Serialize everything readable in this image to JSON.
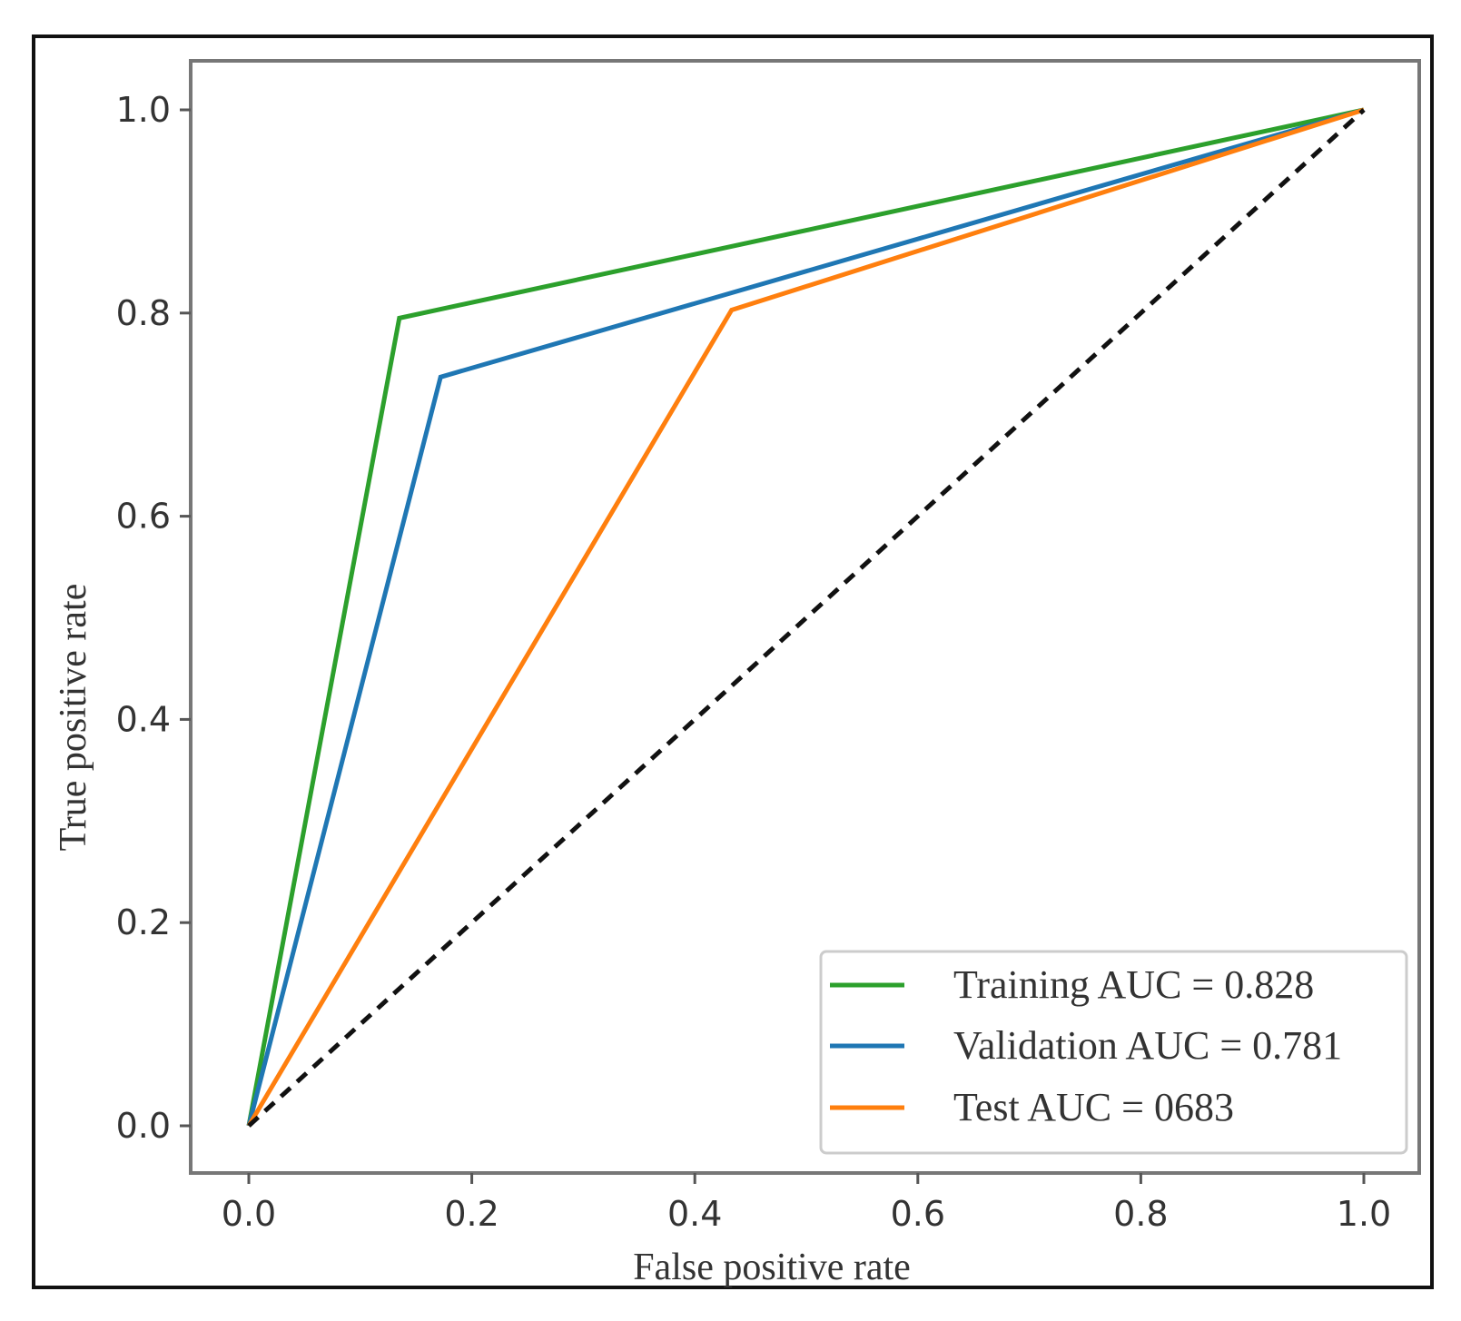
{
  "chart_data": {
    "type": "line",
    "title": "",
    "xlabel": "False positive rate",
    "ylabel": "True positive rate",
    "xlim": [
      0.0,
      1.0
    ],
    "ylim": [
      0.0,
      1.0
    ],
    "xticks": [
      "0.0",
      "0.2",
      "0.4",
      "0.6",
      "0.8",
      "1.0"
    ],
    "yticks": [
      "0.0",
      "0.2",
      "0.4",
      "0.6",
      "0.8",
      "1.0"
    ],
    "grid": false,
    "legend_position": "lower-right",
    "series": [
      {
        "name": "Training AUC = 0.828",
        "color": "#2ca02c",
        "x": [
          0.0,
          0.135,
          1.0
        ],
        "y": [
          0.0,
          0.795,
          1.0
        ]
      },
      {
        "name": "Validation AUC = 0.781",
        "color": "#1f77b4",
        "x": [
          0.0,
          0.172,
          1.0
        ],
        "y": [
          0.0,
          0.737,
          1.0
        ]
      },
      {
        "name": "Test AUC = 0683",
        "color": "#ff7f0e",
        "x": [
          0.0,
          0.433,
          1.0
        ],
        "y": [
          0.0,
          0.803,
          1.0
        ]
      }
    ],
    "reference_line": {
      "color": "#111111",
      "style": "dashed",
      "x": [
        0.0,
        1.0
      ],
      "y": [
        0.0,
        1.0
      ]
    }
  }
}
